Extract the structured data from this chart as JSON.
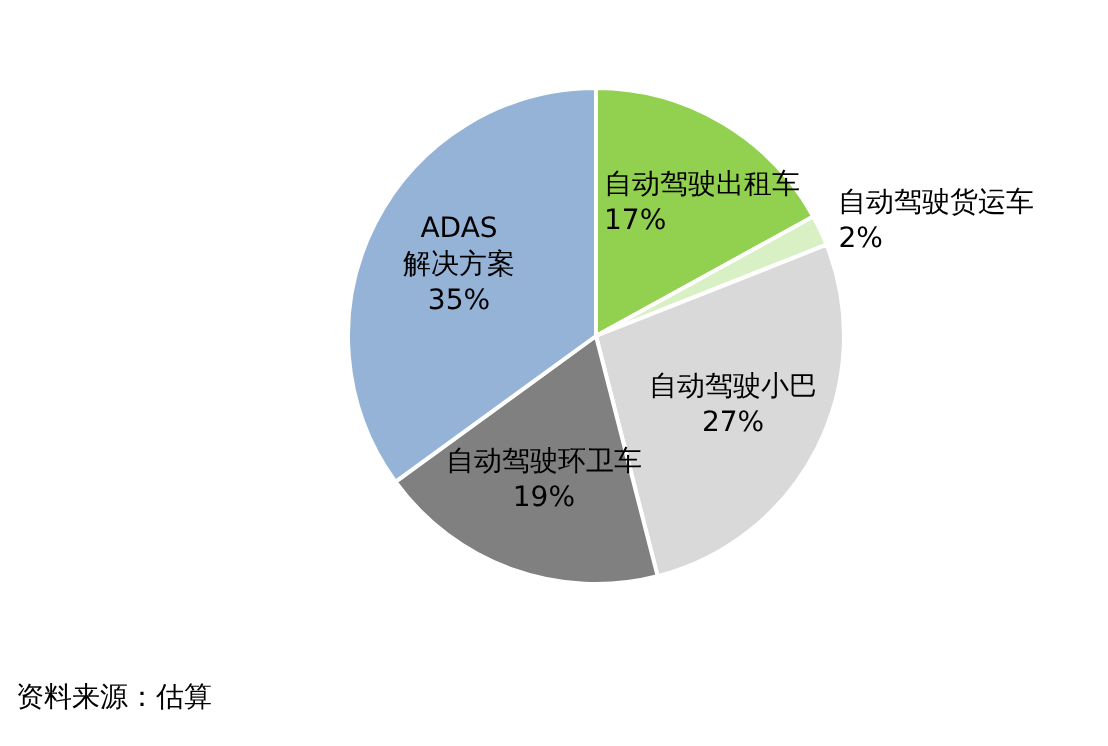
{
  "chart_data": {
    "type": "pie",
    "categories": [
      "自动驾驶出租车",
      "自动驾驶货运车",
      "自动驾驶小巴",
      "自动驾驶环卫车",
      "ADAS 解决方案"
    ],
    "values": [
      17,
      2,
      27,
      19,
      35
    ],
    "colors": [
      "#92d050",
      "#d8f0c4",
      "#d9d9d9",
      "#808080",
      "#95b3d7"
    ],
    "value_labels": [
      "17%",
      "2%",
      "27%",
      "19%",
      "35%"
    ],
    "legend": false,
    "annotations": [
      "资料来源：估算"
    ]
  }
}
